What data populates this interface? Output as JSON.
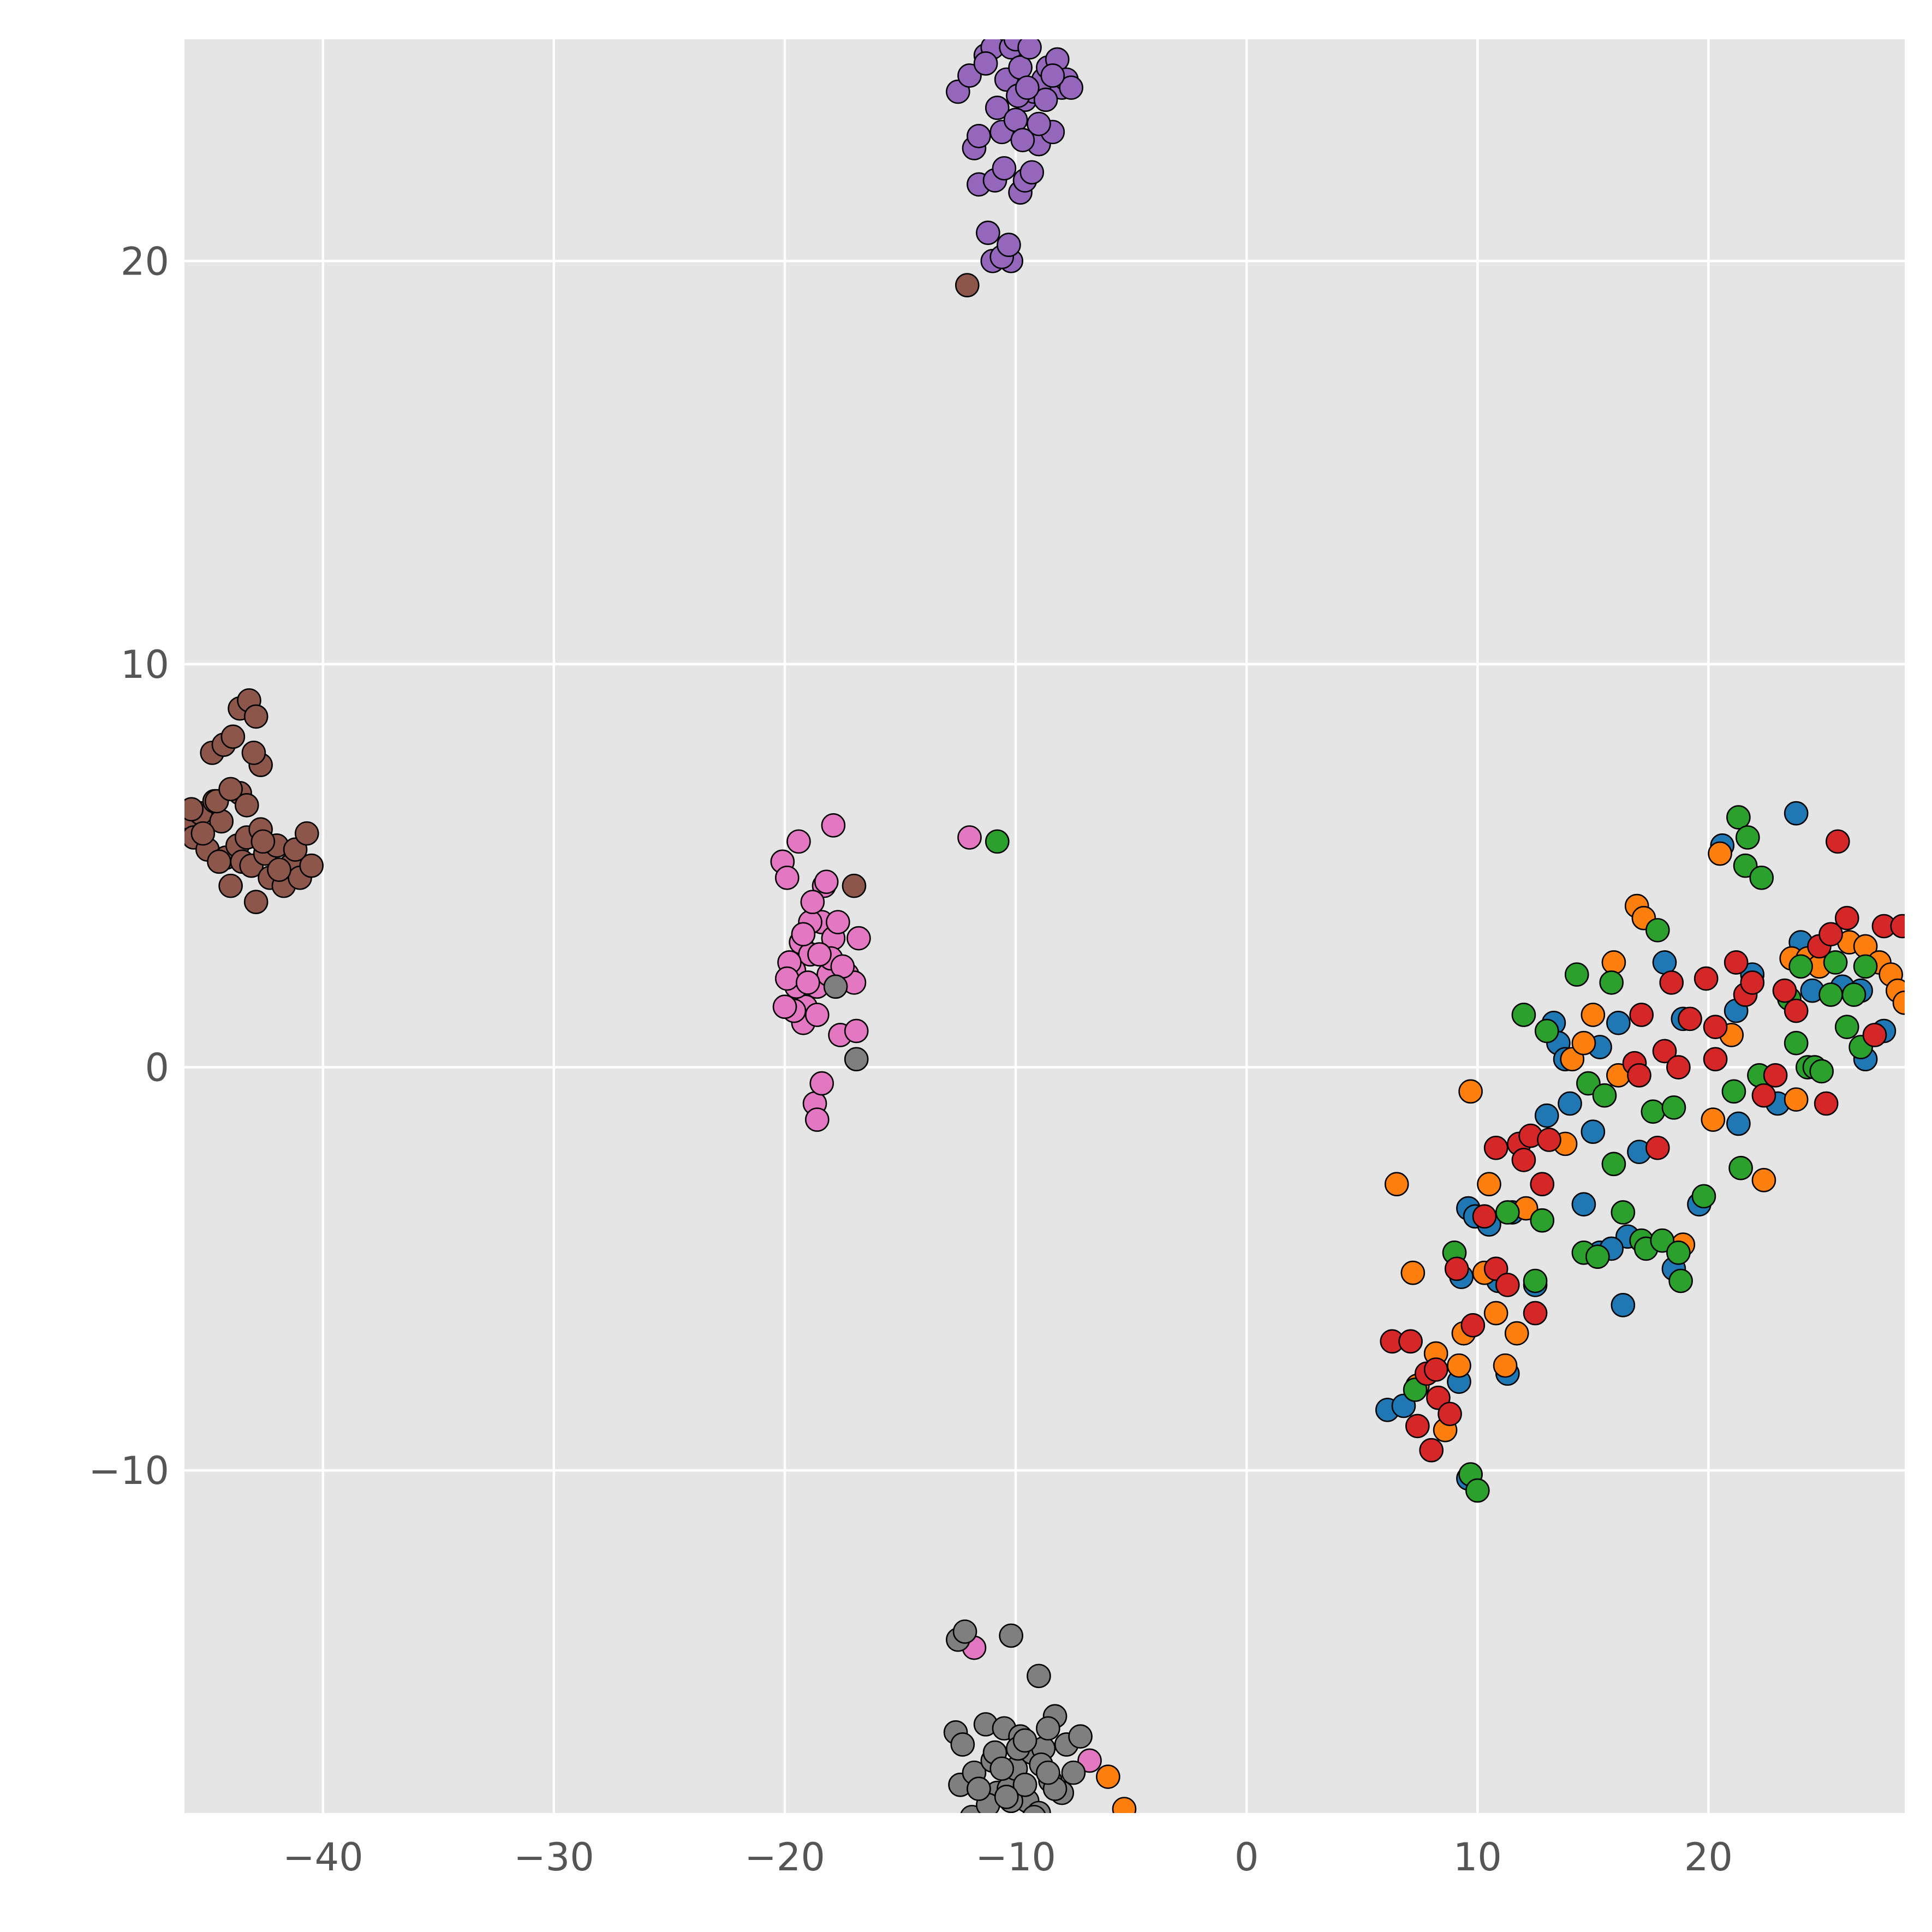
{
  "chart_data": {
    "type": "scatter",
    "title": "",
    "xlabel": "",
    "ylabel": "",
    "xlim": [
      -46,
      28.5
    ],
    "ylim": [
      -18.5,
      25.5
    ],
    "xticks": [
      -40,
      -30,
      -20,
      -10,
      0,
      10,
      20
    ],
    "yticks": [
      -10,
      0,
      10,
      20
    ],
    "xtick_labels": [
      "−40",
      "−30",
      "−20",
      "−10",
      "0",
      "10",
      "20"
    ],
    "ytick_labels": [
      "−10",
      "0",
      "10",
      "20"
    ],
    "grid": true,
    "legend": null,
    "colors": {
      "blue": "#1f77b4",
      "orange": "#ff7f0e",
      "green": "#2ca02c",
      "red": "#d62728",
      "purple": "#9467bd",
      "brown": "#8c564b",
      "pink": "#e377c2",
      "gray": "#7f7f7f"
    },
    "series": [
      {
        "name": "blue",
        "color": "#1f77b4",
        "x": [
          6.1,
          6.8,
          9.2,
          9.6,
          9.6,
          9.9,
          10.5,
          10.9,
          11.3,
          11.5,
          12.5,
          13.0,
          13.3,
          13.5,
          14.0,
          14.6,
          15.0,
          15.3,
          15.3,
          16.1,
          16.3,
          16.5,
          17.0,
          18.1,
          18.5,
          18.9,
          19.6,
          20.6,
          21.2,
          21.3,
          21.9,
          23.0,
          23.8,
          24.0,
          24.5,
          25.8,
          26.6,
          26.8,
          27.6,
          9.3,
          15.8,
          13.8
        ],
        "y": [
          -8.5,
          -8.4,
          -7.8,
          -10.2,
          -3.5,
          -3.7,
          -3.9,
          -5.3,
          -7.6,
          -3.6,
          -5.4,
          -1.2,
          1.1,
          0.6,
          -0.9,
          -3.4,
          -1.6,
          0.5,
          -4.6,
          1.1,
          -5.9,
          -4.2,
          -2.1,
          2.6,
          -5.0,
          1.2,
          -3.4,
          5.5,
          1.4,
          -1.4,
          2.3,
          -0.9,
          6.3,
          3.1,
          1.9,
          2.0,
          1.9,
          0.2,
          0.9,
          -5.2,
          -4.5,
          0.2
        ]
      },
      {
        "name": "orange",
        "color": "#ff7f0e",
        "x": [
          6.5,
          7.2,
          7.4,
          8.2,
          8.6,
          9.2,
          9.4,
          9.7,
          10.3,
          10.5,
          10.8,
          11.2,
          11.7,
          12.1,
          13.8,
          14.1,
          14.6,
          15.0,
          15.9,
          16.1,
          16.9,
          17.2,
          18.9,
          20.2,
          20.5,
          21.0,
          22.4,
          23.6,
          23.8,
          24.3,
          24.8,
          26.1,
          26.8,
          27.4,
          27.9,
          28.2,
          28.5,
          -6.0,
          -5.3,
          -5.4
        ],
        "y": [
          -2.9,
          -5.1,
          -7.9,
          -7.1,
          -9.0,
          -7.4,
          -6.6,
          -0.6,
          -5.1,
          -2.9,
          -6.1,
          -7.4,
          -6.6,
          -3.5,
          -1.9,
          0.2,
          0.6,
          1.3,
          2.6,
          -0.2,
          4.0,
          3.7,
          -4.4,
          -1.3,
          5.3,
          0.8,
          -2.8,
          2.7,
          -0.8,
          2.7,
          2.5,
          3.1,
          3.0,
          2.6,
          2.3,
          1.9,
          1.6,
          -17.6,
          -18.4,
          -18.8
        ]
      },
      {
        "name": "green",
        "color": "#2ca02c",
        "x": [
          7.3,
          9.0,
          9.7,
          10.0,
          11.3,
          12.0,
          12.5,
          12.8,
          13.0,
          14.3,
          14.6,
          14.8,
          15.2,
          15.5,
          15.8,
          15.9,
          16.3,
          17.1,
          17.3,
          17.6,
          17.8,
          18.0,
          18.5,
          18.7,
          18.8,
          19.8,
          21.1,
          21.3,
          21.4,
          21.6,
          21.7,
          22.2,
          22.3,
          23.5,
          23.8,
          24.0,
          24.3,
          24.6,
          24.9,
          25.3,
          25.5,
          26.0,
          26.3,
          26.6,
          26.8,
          -10.8
        ],
        "y": [
          -8.0,
          -4.6,
          -10.1,
          -10.5,
          -3.6,
          1.3,
          -5.3,
          -3.8,
          0.9,
          2.3,
          -4.6,
          -0.4,
          -4.7,
          -0.7,
          2.1,
          -2.4,
          -3.6,
          -4.3,
          -4.5,
          -1.1,
          3.4,
          -4.3,
          -1.0,
          -4.6,
          -5.3,
          -3.2,
          -0.6,
          6.2,
          -2.5,
          5.0,
          5.7,
          -0.2,
          4.7,
          1.7,
          0.6,
          2.5,
          0.0,
          0.0,
          -0.1,
          1.8,
          2.6,
          1.0,
          1.8,
          0.5,
          2.5,
          5.6
        ]
      },
      {
        "name": "red",
        "color": "#d62728",
        "x": [
          6.3,
          7.1,
          7.4,
          7.8,
          8.0,
          8.2,
          8.3,
          8.8,
          9.1,
          9.8,
          10.3,
          10.8,
          10.8,
          11.3,
          11.8,
          12.0,
          12.3,
          12.5,
          12.8,
          13.1,
          16.8,
          17.0,
          17.1,
          17.8,
          18.1,
          18.4,
          18.7,
          19.2,
          19.9,
          20.3,
          20.3,
          21.2,
          21.6,
          21.9,
          22.4,
          22.9,
          23.3,
          23.8,
          24.8,
          25.1,
          25.3,
          25.6,
          26.0,
          27.2,
          27.6,
          28.4
        ],
        "y": [
          -6.8,
          -6.8,
          -8.9,
          -7.6,
          -9.5,
          -7.5,
          -8.2,
          -8.6,
          -5.0,
          -6.4,
          -3.7,
          -2.0,
          -5.0,
          -5.4,
          -1.9,
          -2.3,
          -1.7,
          -6.1,
          -2.9,
          -1.8,
          0.1,
          -0.2,
          1.3,
          -2.0,
          0.4,
          2.1,
          0.0,
          1.2,
          2.2,
          0.2,
          1.0,
          2.6,
          1.8,
          2.1,
          -0.7,
          -0.2,
          1.9,
          1.4,
          3.0,
          -0.9,
          3.3,
          5.6,
          3.7,
          0.8,
          3.5,
          3.5
        ]
      },
      {
        "name": "purple",
        "color": "#9467bd",
        "x": [
          -12.5,
          -12.0,
          -11.8,
          -11.6,
          -11.3,
          -11.0,
          -10.8,
          -10.6,
          -10.4,
          -10.2,
          -10.0,
          -9.8,
          -9.6,
          -9.4,
          -9.2,
          -9.0,
          -8.8,
          -8.6,
          -8.4,
          -8.2,
          -8.0,
          -7.8,
          -7.6,
          -11.0,
          -10.4,
          -10.2,
          -9.8,
          -9.6,
          -9.3,
          -9.0,
          -8.7,
          -8.4,
          -11.6,
          -11.2,
          -10.9,
          -10.5,
          -11.3,
          -10.6,
          -10.3,
          -9.9,
          -9.5,
          -10.0,
          -9.7
        ],
        "y": [
          24.2,
          24.6,
          22.8,
          23.1,
          25.1,
          25.3,
          23.8,
          23.2,
          24.5,
          25.3,
          25.5,
          24.8,
          24.0,
          25.3,
          24.2,
          22.9,
          24.5,
          24.8,
          23.2,
          25.0,
          24.3,
          24.5,
          24.3,
          20.0,
          20.2,
          20.0,
          21.7,
          22.0,
          22.2,
          23.4,
          24.0,
          24.6,
          21.9,
          20.7,
          22.0,
          22.3,
          24.9,
          20.1,
          20.4,
          24.1,
          24.3,
          23.5,
          23.0
        ]
      },
      {
        "name": "brown",
        "color": "#8c564b",
        "x": [
          -45.9,
          -45.6,
          -45.3,
          -45.0,
          -44.7,
          -44.4,
          -44.2,
          -44.0,
          -43.7,
          -43.5,
          -43.3,
          -43.1,
          -42.9,
          -42.7,
          -42.5,
          -42.3,
          -42.0,
          -41.7,
          -41.4,
          -41.2,
          -41.0,
          -40.7,
          -40.5,
          -43.6,
          -43.2,
          -42.9,
          -42.7,
          -44.8,
          -44.3,
          -43.9,
          -43.6,
          -44.6,
          -45.2,
          -44.0,
          -43.3,
          -42.6,
          -41.9,
          -43.0,
          -44.5,
          -45.7,
          -12.1,
          -17.0
        ],
        "y": [
          6.2,
          5.7,
          6.3,
          5.4,
          6.6,
          6.1,
          5.2,
          4.5,
          5.5,
          5.1,
          5.7,
          5.0,
          4.1,
          5.9,
          5.3,
          4.7,
          5.5,
          4.5,
          5.0,
          5.4,
          4.7,
          5.8,
          5.0,
          8.9,
          9.1,
          8.7,
          7.5,
          7.8,
          8.0,
          8.2,
          6.8,
          6.6,
          5.8,
          6.9,
          6.5,
          5.6,
          4.9,
          7.8,
          5.1,
          6.4,
          19.4,
          4.5
        ]
      },
      {
        "name": "pink",
        "color": "#e377c2",
        "x": [
          -20.1,
          -19.9,
          -19.6,
          -19.3,
          -19.1,
          -18.9,
          -18.6,
          -18.4,
          -18.1,
          -17.9,
          -17.6,
          -17.3,
          -17.0,
          -16.8,
          -19.8,
          -19.5,
          -19.2,
          -18.9,
          -18.6,
          -18.3,
          -18.0,
          -17.7,
          -19.9,
          -19.6,
          -19.4,
          -19.0,
          -18.8,
          -18.5,
          -18.7,
          -18.6,
          -18.4,
          -17.9,
          -20.0,
          -19.2,
          -18.2,
          -17.5,
          -16.9,
          -12.0,
          -11.8,
          -6.8
        ],
        "y": [
          5.1,
          4.7,
          2.4,
          3.1,
          1.5,
          2.8,
          2.0,
          3.6,
          2.3,
          3.2,
          0.8,
          2.3,
          2.1,
          3.2,
          2.6,
          2.0,
          1.1,
          3.6,
          1.3,
          4.5,
          2.7,
          3.6,
          2.2,
          1.4,
          5.6,
          2.1,
          4.1,
          2.8,
          -0.9,
          -1.3,
          -0.4,
          6.0,
          1.5,
          3.3,
          4.6,
          2.5,
          0.9,
          5.7,
          -14.4,
          -17.2
        ]
      },
      {
        "name": "gray",
        "color": "#7f7f7f",
        "x": [
          -12.6,
          -12.4,
          -12.1,
          -11.8,
          -11.5,
          -11.3,
          -11.0,
          -10.8,
          -10.5,
          -10.3,
          -10.0,
          -9.8,
          -9.5,
          -9.3,
          -9.0,
          -8.8,
          -8.5,
          -8.3,
          -8.0,
          -7.8,
          -7.5,
          -12.3,
          -11.9,
          -11.6,
          -11.2,
          -10.9,
          -10.6,
          -10.2,
          -9.9,
          -9.6,
          -9.2,
          -8.9,
          -8.6,
          -8.3,
          -12.5,
          -12.2,
          -10.2,
          -9.0,
          -7.2,
          -11.6,
          -10.4,
          -9.6,
          -8.6,
          -17.8,
          -16.9
        ],
        "y": [
          -16.5,
          -17.8,
          -18.8,
          -17.5,
          -18.7,
          -16.3,
          -17.2,
          -18.0,
          -16.4,
          -17.9,
          -17.4,
          -16.6,
          -18.2,
          -17.0,
          -18.5,
          -16.9,
          -17.7,
          -16.1,
          -18.0,
          -16.8,
          -17.5,
          -16.8,
          -18.6,
          -17.9,
          -18.3,
          -17.0,
          -17.4,
          -18.2,
          -16.9,
          -17.8,
          -18.6,
          -17.3,
          -16.4,
          -17.9,
          -14.2,
          -14.0,
          -14.1,
          -15.1,
          -16.6,
          -17.9,
          -18.1,
          -16.7,
          -17.5,
          2.0,
          0.2
        ]
      }
    ]
  }
}
